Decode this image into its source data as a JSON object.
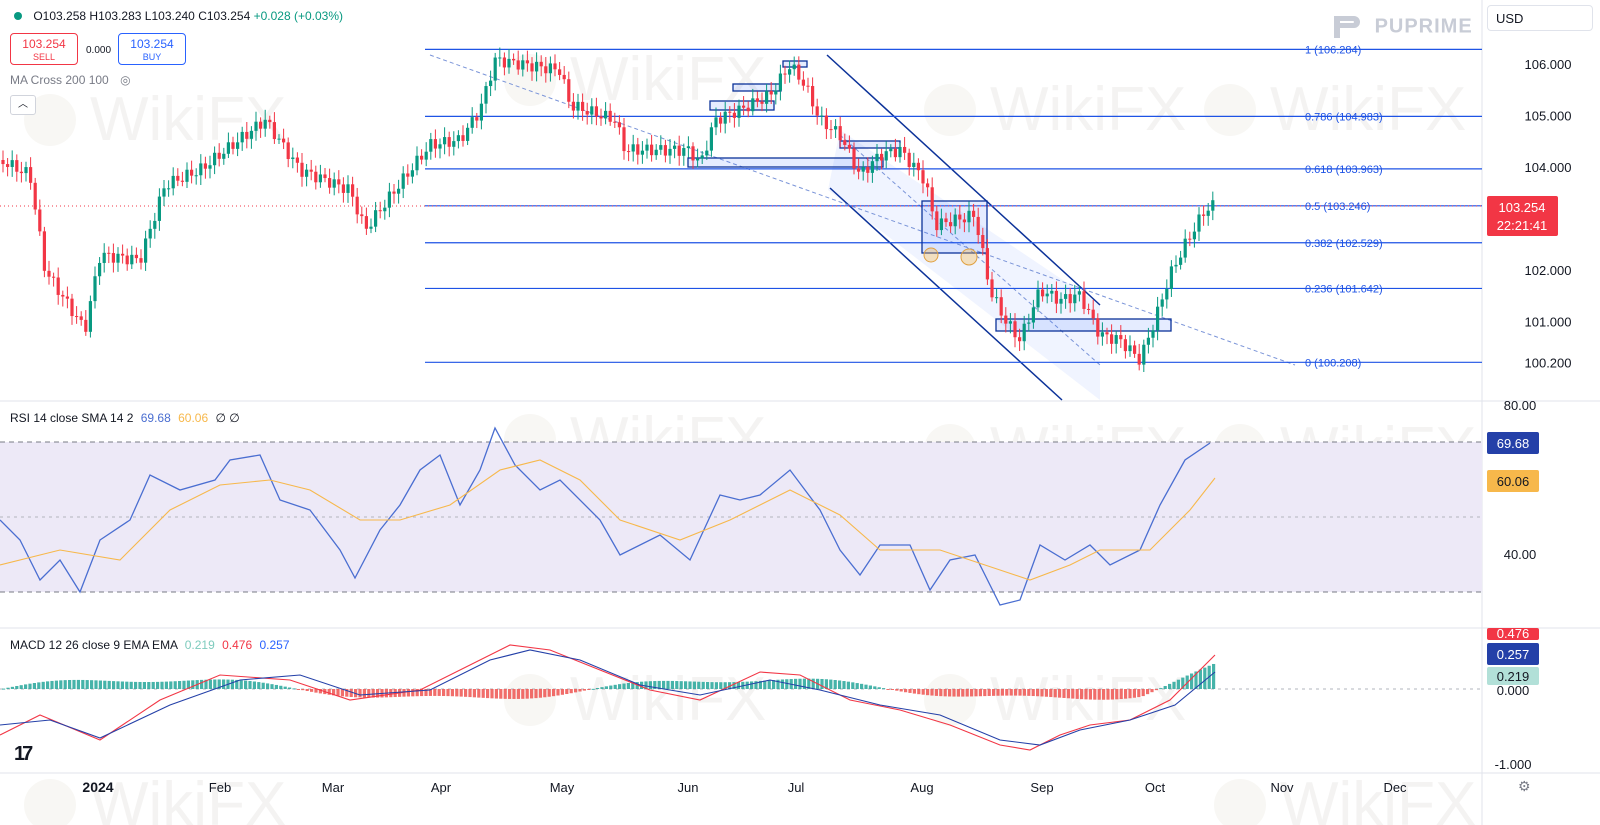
{
  "ohlc": {
    "open": "O103.258",
    "high": "H103.283",
    "low": "L103.240",
    "close": "C103.254",
    "change": "+0.028 (+0.03%)"
  },
  "trade": {
    "sell_price": "103.254",
    "sell_label": "SELL",
    "spread": "0.000",
    "buy_price": "103.254",
    "buy_label": "BUY"
  },
  "indicators": {
    "ma_label": "MA Cross 200 100",
    "rsi_title": "RSI 14 close SMA 14 2",
    "rsi_val": "69.68",
    "rsi_sma": "60.06",
    "rsi_extra": "∅ ∅",
    "macd_title": "MACD 12 26 close 9 EMA EMA",
    "macd_hist": "0.219",
    "macd_line": "0.476",
    "macd_signal": "0.257"
  },
  "currency": "USD",
  "brand": "PUPRIME",
  "tv_logo": "17",
  "watermark": "WikiFX",
  "price_axis": {
    "labels": [
      "106.000",
      "105.000",
      "104.000",
      "102.000",
      "101.000",
      "100.200"
    ],
    "current_price": "103.254",
    "countdown": "22:21:41"
  },
  "rsi_axis": {
    "labels": [
      "80.00",
      "40.00"
    ],
    "current": "69.68",
    "sma": "60.06"
  },
  "macd_axis": {
    "labels": [
      "0.000",
      "-1.000"
    ],
    "macd": "0.476",
    "signal": "0.257",
    "hist": "0.219"
  },
  "time_axis": [
    "2024",
    "Feb",
    "Mar",
    "Apr",
    "May",
    "Jun",
    "Jul",
    "Aug",
    "Sep",
    "Oct",
    "Nov",
    "Dec"
  ],
  "fib_levels": [
    {
      "label": "1 (106.284)",
      "price": 106.284
    },
    {
      "label": "0.786 (104.983)",
      "price": 104.983
    },
    {
      "label": "0.618 (103.963)",
      "price": 103.963
    },
    {
      "label": "0.5 (103.246)",
      "price": 103.246
    },
    {
      "label": "0.382 (102.529)",
      "price": 102.529
    },
    {
      "label": "0.236 (101.642)",
      "price": 101.642
    },
    {
      "label": "0 (100.208)",
      "price": 100.208
    }
  ],
  "colors": {
    "up": "#089981",
    "down": "#f23645",
    "fib": "#1e53e5",
    "rsi": "#4a6ed1",
    "rsi_sma": "#f7b84b",
    "macd": "#2962ff",
    "signal": "#f23645",
    "hist_up": "#26a69a",
    "hist_down": "#ef5350",
    "band": "#ede9f7"
  }
}
